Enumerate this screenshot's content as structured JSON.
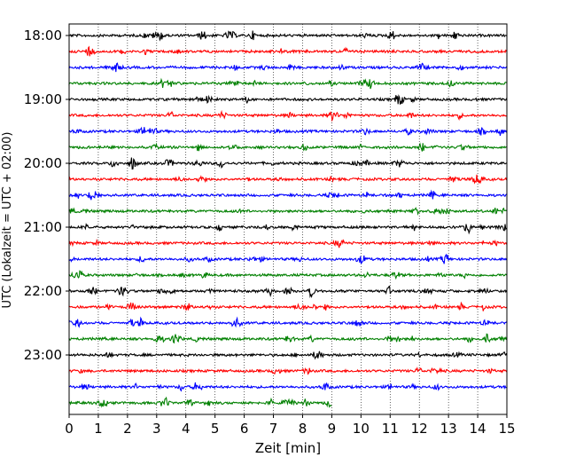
{
  "chart_data": {
    "type": "line",
    "title": "",
    "xlabel": "Zeit  [min]",
    "ylabel": "UTC (Lokalzeit = UTC + 02:00)",
    "xlim": [
      0,
      15
    ],
    "x_ticks": [
      0,
      1,
      2,
      3,
      4,
      5,
      6,
      7,
      8,
      9,
      10,
      11,
      12,
      13,
      14,
      15
    ],
    "y_tick_labels": [
      "18:00",
      "19:00",
      "20:00",
      "21:00",
      "22:00",
      "23:00"
    ],
    "grid": "vertical dotted lines at each minute",
    "trace_colors": [
      "#000000",
      "#ff0000",
      "#0000ff",
      "#008000"
    ],
    "traces": [
      {
        "start": "18:00",
        "x_end": 15
      },
      {
        "start": "18:15",
        "x_end": 15
      },
      {
        "start": "18:30",
        "x_end": 15
      },
      {
        "start": "18:45",
        "x_end": 15
      },
      {
        "start": "19:00",
        "x_end": 15
      },
      {
        "start": "19:15",
        "x_end": 15
      },
      {
        "start": "19:30",
        "x_end": 15
      },
      {
        "start": "19:45",
        "x_end": 15
      },
      {
        "start": "20:00",
        "x_end": 15
      },
      {
        "start": "20:15",
        "x_end": 15
      },
      {
        "start": "20:30",
        "x_end": 15
      },
      {
        "start": "20:45",
        "x_end": 15
      },
      {
        "start": "21:00",
        "x_end": 15
      },
      {
        "start": "21:15",
        "x_end": 15
      },
      {
        "start": "21:30",
        "x_end": 15
      },
      {
        "start": "21:45",
        "x_end": 15
      },
      {
        "start": "22:00",
        "x_end": 15
      },
      {
        "start": "22:15",
        "x_end": 15
      },
      {
        "start": "22:30",
        "x_end": 15
      },
      {
        "start": "22:45",
        "x_end": 15
      },
      {
        "start": "23:00",
        "x_end": 15
      },
      {
        "start": "23:15",
        "x_end": 15
      },
      {
        "start": "23:30",
        "x_end": 15
      },
      {
        "start": "23:45",
        "x_end": 9
      }
    ]
  }
}
